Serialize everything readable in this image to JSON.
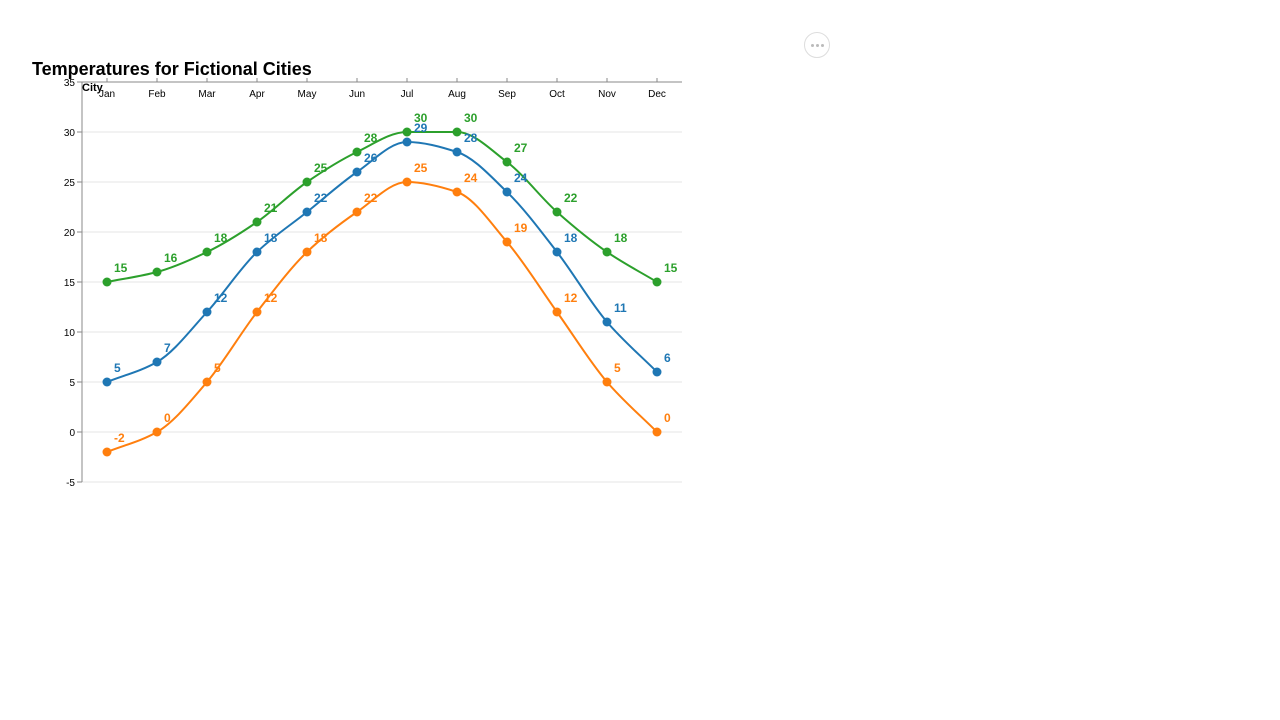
{
  "menu": {
    "icon": "more-horizontal-icon"
  },
  "chart_data": {
    "type": "line",
    "title": "Temperatures for Fictional Cities",
    "legend_title": "City",
    "categories": [
      "Jan",
      "Feb",
      "Mar",
      "Apr",
      "May",
      "Jun",
      "Jul",
      "Aug",
      "Sep",
      "Oct",
      "Nov",
      "Dec"
    ],
    "y_ticks": [
      -5,
      0,
      5,
      10,
      15,
      20,
      25,
      30,
      35
    ],
    "ylim": [
      -5,
      35
    ],
    "x_axis_position": "top",
    "grid": true,
    "data_labels": true,
    "series": [
      {
        "values": [
          15,
          16,
          18,
          21,
          25,
          28,
          30,
          30,
          27,
          22,
          18,
          15
        ],
        "color": "#2ca02c"
      },
      {
        "values": [
          5,
          7,
          12,
          18,
          22,
          26,
          29,
          28,
          24,
          18,
          11,
          6
        ],
        "color": "#1f77b4"
      },
      {
        "values": [
          -2,
          0,
          5,
          12,
          18,
          22,
          25,
          24,
          19,
          12,
          5,
          0
        ],
        "color": "#ff7f0e"
      }
    ]
  }
}
